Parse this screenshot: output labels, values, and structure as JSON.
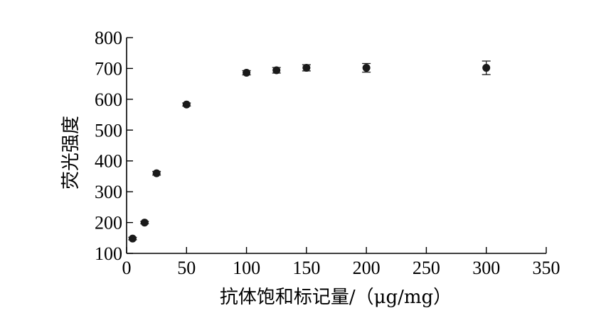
{
  "chart_data": {
    "type": "scatter",
    "title": "",
    "xlabel": "抗体饱和标记量/（μg/mg）",
    "ylabel": "荧光强度",
    "xlim": [
      0,
      350
    ],
    "ylim": [
      100,
      800
    ],
    "xticks": [
      0,
      50,
      100,
      150,
      200,
      250,
      300,
      350
    ],
    "yticks": [
      100,
      200,
      300,
      400,
      500,
      600,
      700,
      800
    ],
    "grid": false,
    "series": [
      {
        "x": [
          5,
          15,
          25,
          50,
          100,
          125,
          150,
          200,
          300
        ],
        "y": [
          148,
          200,
          360,
          583,
          686,
          694,
          702,
          702,
          702
        ],
        "error": [
          4,
          4,
          6,
          5,
          7,
          9,
          10,
          14,
          22
        ]
      }
    ]
  }
}
